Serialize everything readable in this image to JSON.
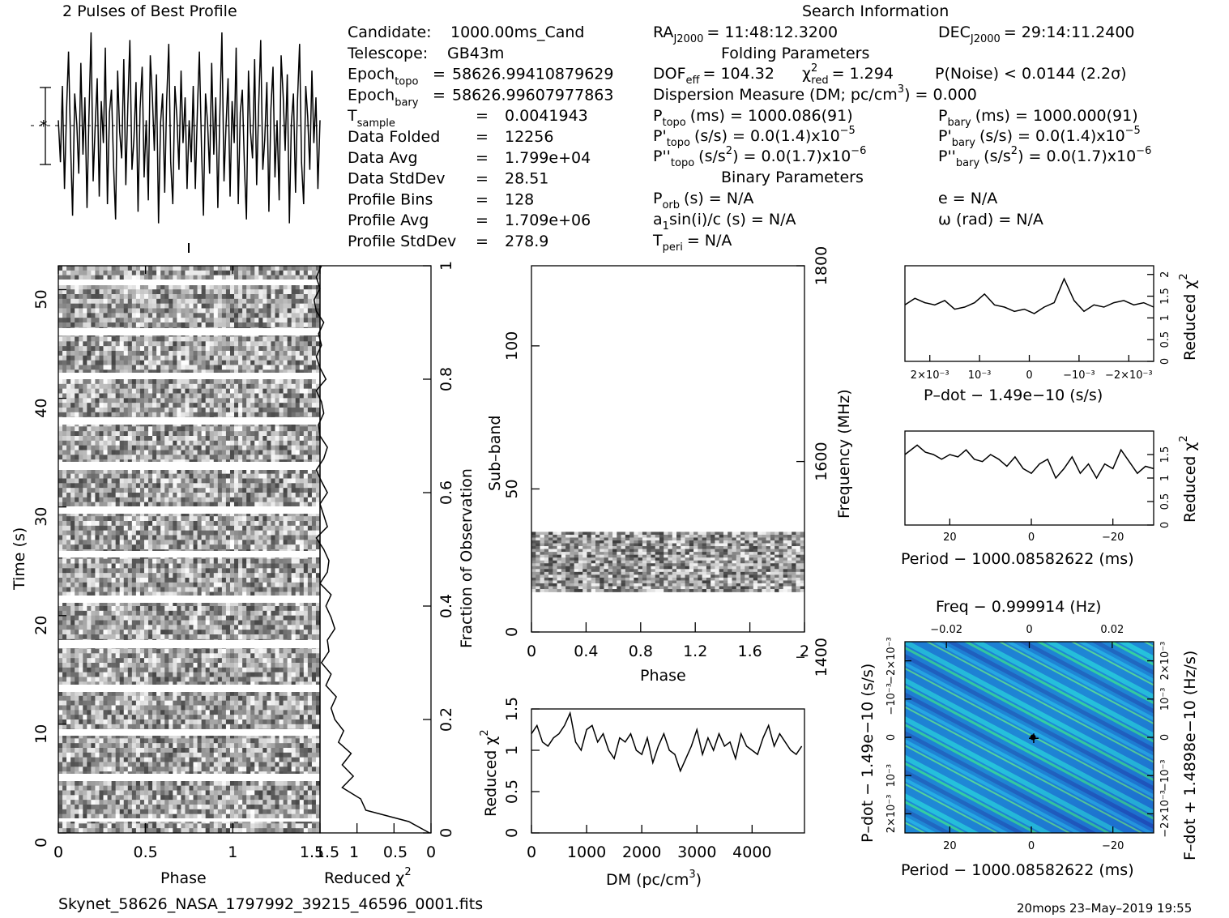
{
  "profile_title": "2 Pulses of Best Profile",
  "search_title": "Search Information",
  "footer": {
    "filename": "Skynet_58626_NASA_1797992_39215_46596_0001.fits",
    "stamp": "20mops 23–May–2019 19:55"
  },
  "info_left": [
    {
      "label": "Candidate:",
      "sub": "",
      "eq": "",
      "value": "1000.00ms_Cand"
    },
    {
      "label": "Telescope:",
      "sub": "",
      "eq": "",
      "value": "GB43m"
    },
    {
      "label": "Epoch",
      "sub": "topo",
      "eq": "=",
      "value": "58626.99410879629"
    },
    {
      "label": "Epoch",
      "sub": "bary",
      "eq": "=",
      "value": "58626.99607977863"
    },
    {
      "label": "T",
      "sub": "sample",
      "eq": "=",
      "value": "0.0041943"
    },
    {
      "label": "Data Folded",
      "sub": "",
      "eq": "=",
      "value": "12256"
    },
    {
      "label": "Data Avg",
      "sub": "",
      "eq": "=",
      "value": "1.799e+04"
    },
    {
      "label": "Data StdDev",
      "sub": "",
      "eq": "=",
      "value": "28.51"
    },
    {
      "label": "Profile Bins",
      "sub": "",
      "eq": "=",
      "value": "128"
    },
    {
      "label": "Profile Avg",
      "sub": "",
      "eq": "=",
      "value": "1.709e+06"
    },
    {
      "label": "Profile StdDev",
      "sub": "",
      "eq": "=",
      "value": "278.9"
    }
  ],
  "search_info": {
    "ra_label": "RA",
    "ra_sub": "J2000",
    "ra_value": "= 11:48:12.3200",
    "dec_label": "DEC",
    "dec_sub": "J2000",
    "dec_value": "= 29:14:11.2400",
    "folding_header": "Folding Parameters",
    "dof_label": "DOF",
    "dof_sub": "eff",
    "dof_value": "= 104.32",
    "chi_label": "χ",
    "chi_sup": "2",
    "chi_sub": "red",
    "chi_value": "= 1.294",
    "pnoise": "P(Noise) < 0.0144   (2.2σ)",
    "dm_text": "Dispersion Measure (DM; pc/cm",
    "dm_sup": "3",
    "dm_value": ") = 0.000",
    "p_topo_label": "P",
    "p_topo_sub": "topo",
    "p_topo_value": "(ms) =  1000.086(91)",
    "p_bary_label": "P",
    "p_bary_sub": "bary",
    "p_bary_value": "(ms) =  1000.000(91)",
    "pd_topo_label": "P'",
    "pd_topo_sub": "topo",
    "pd_topo_value": "(s/s) = 0.0(1.4)x10",
    "pd_topo_exp": "−5",
    "pd_bary_label": "P'",
    "pd_bary_sub": "bary",
    "pd_bary_value": "(s/s) = 0.0(1.4)x10",
    "pd_bary_exp": "−5",
    "pdd_topo_label": "P''",
    "pdd_topo_sub": "topo",
    "pdd_topo_value": "(s/s",
    "pdd_topo_rest": ") = 0.0(1.7)x10",
    "pdd_topo_exp": "−6",
    "pdd_bary_label": "P''",
    "pdd_bary_sub": "bary",
    "pdd_bary_value": "(s/s",
    "pdd_bary_rest": ") = 0.0(1.7)x10",
    "pdd_bary_exp": "−6",
    "sq": "2",
    "binary_header": "Binary Parameters",
    "porb_label": "P",
    "porb_sub": "orb",
    "porb_value": "(s) = N/A",
    "e_value": "e = N/A",
    "a1_label": "a",
    "a1_sub": "1",
    "a1_value": "sin(i)/c (s) = N/A",
    "omega_value": "ω (rad) = N/A",
    "tperi_label": "T",
    "tperi_sub": "peri",
    "tperi_value": "= N/A"
  },
  "labels": {
    "time_axis": "Time (s)",
    "phase": "Phase",
    "reduced": "Reduced",
    "chi": "χ",
    "chi_sup": "2",
    "fraction": "Fraction of Observation",
    "subband": "Sub–band",
    "frequency": "Frequency (MHz)",
    "dm_axis": "DM (pc/cm",
    "dm_axis_sup": "3",
    "dm_axis_end": ")",
    "pdot_x": "P–dot − 1.49e−10 (s/s)",
    "period_x": "Period − 1000.08582622 (ms)",
    "freq_top": "Freq − 0.999914 (Hz)",
    "pdot_left": "P–dot − 1.49e−10 (s/s)",
    "fdot_right": "F–dot + 1.4898e−10 (Hz/s)"
  },
  "chart_data": [
    {
      "type": "line",
      "name": "profile",
      "x": [
        0,
        0.016,
        0.031,
        0.047,
        0.063,
        0.078,
        0.094,
        0.109,
        0.125,
        0.141,
        0.156,
        0.172,
        0.188,
        0.203,
        0.219,
        0.234,
        0.25,
        0.266,
        0.281,
        0.297,
        0.313,
        0.328,
        0.344,
        0.359,
        0.375,
        0.391,
        0.406,
        0.422,
        0.438,
        0.453,
        0.469,
        0.484,
        0.5,
        0.516,
        0.531,
        0.547,
        0.563,
        0.578,
        0.594,
        0.609,
        0.625,
        0.641,
        0.656,
        0.672,
        0.688,
        0.703,
        0.719,
        0.734,
        0.75,
        0.766,
        0.781,
        0.797,
        0.813,
        0.828,
        0.844,
        0.859,
        0.875,
        0.891,
        0.906,
        0.922,
        0.938,
        0.953,
        0.969,
        0.984,
        1.0,
        1.016,
        1.031,
        1.047,
        1.063,
        1.078,
        1.094,
        1.109,
        1.125,
        1.141,
        1.156,
        1.172,
        1.188,
        1.203,
        1.219,
        1.234,
        1.25,
        1.266,
        1.281,
        1.297,
        1.313,
        1.328,
        1.344,
        1.359,
        1.375,
        1.391,
        1.406,
        1.422,
        1.438,
        1.453,
        1.469,
        1.484,
        1.5,
        1.516,
        1.531,
        1.547,
        1.563,
        1.578,
        1.594,
        1.609,
        1.625,
        1.641,
        1.656,
        1.672,
        1.688,
        1.703,
        1.719,
        1.734,
        1.75,
        1.766,
        1.781,
        1.797,
        1.813,
        1.828,
        1.844,
        1.859,
        1.875,
        1.891,
        1.906,
        1.922,
        1.938,
        1.953,
        1.969,
        1.984,
        2.0
      ],
      "y": [
        0.3,
        -0.8,
        1.2,
        -1.5,
        0.6,
        2.1,
        -0.4,
        -2.2,
        1.0,
        0.2,
        -1.1,
        1.8,
        -0.6,
        0.9,
        -2.0,
        0.4,
        2.6,
        -1.3,
        0.1,
        1.4,
        -1.7,
        0.8,
        -0.3,
        2.2,
        -1.9,
        0.5,
        1.1,
        -0.9,
        -2.3,
        1.6,
        0.0,
        -0.7,
        1.9,
        -1.4,
        0.7,
        2.4,
        -1.0,
        -0.2,
        1.3,
        -2.1,
        0.6,
        1.7,
        -1.2,
        0.3,
        -1.8,
        2.0,
        0.9,
        -0.5,
        1.5,
        -2.4,
        0.2,
        1.0,
        -1.6,
        0.8,
        2.3,
        -0.8,
        -1.9,
        1.2,
        0.4,
        -1.0,
        1.6,
        -0.3,
        0.9,
        -1.5,
        0.3,
        -0.8,
        1.2,
        -1.5,
        0.6,
        2.1,
        -0.4,
        -2.2,
        1.0,
        0.2,
        -1.1,
        1.8,
        -0.6,
        0.9,
        -2.0,
        0.4,
        2.6,
        -1.3,
        0.1,
        1.4,
        -1.7,
        0.8,
        -0.3,
        2.2,
        -1.9,
        0.5,
        1.1,
        -0.9,
        -2.3,
        1.6,
        0.0,
        -0.7,
        1.9,
        -1.4,
        0.7,
        2.4,
        -1.0,
        -0.2,
        1.3,
        -2.1,
        0.6,
        1.7,
        -1.2,
        0.3,
        -1.8,
        2.0,
        0.9,
        -0.5,
        1.5,
        -2.4,
        0.2,
        1.0,
        -1.6,
        0.8,
        2.3,
        -0.8,
        -1.9,
        1.2,
        0.4,
        -1.0,
        1.6,
        -0.3,
        0.9,
        -1.5,
        0.3
      ]
    },
    {
      "type": "line",
      "name": "time_chi2",
      "xlabel": "Reduced χ²",
      "ylabel": "Fraction of Observation",
      "x": [
        0.02,
        0.3,
        0.88,
        0.95,
        1.2,
        1.05,
        1.2,
        1.08,
        1.25,
        1.18,
        1.3,
        1.35,
        1.28,
        1.42,
        1.35,
        1.48,
        1.38,
        1.4,
        1.3,
        1.35,
        1.42,
        1.35,
        1.5,
        1.4,
        1.38,
        1.45,
        1.55,
        1.4,
        1.45,
        1.5,
        1.4,
        1.48,
        1.55,
        1.45,
        1.4,
        1.5,
        1.52,
        1.45,
        1.48,
        1.55,
        1.42,
        1.5,
        1.55,
        1.48,
        1.52,
        1.45,
        1.55,
        1.58,
        1.5,
        1.55,
        1.48
      ],
      "y": [
        0,
        0.02,
        0.04,
        0.06,
        0.08,
        0.1,
        0.12,
        0.14,
        0.16,
        0.18,
        0.2,
        0.22,
        0.24,
        0.26,
        0.28,
        0.3,
        0.32,
        0.34,
        0.36,
        0.38,
        0.4,
        0.42,
        0.44,
        0.46,
        0.48,
        0.5,
        0.52,
        0.54,
        0.56,
        0.58,
        0.6,
        0.62,
        0.64,
        0.66,
        0.68,
        0.7,
        0.72,
        0.74,
        0.76,
        0.78,
        0.8,
        0.82,
        0.84,
        0.86,
        0.88,
        0.9,
        0.92,
        0.94,
        0.96,
        0.98,
        1.0
      ],
      "xlim": [
        1.5,
        0
      ],
      "ylim": [
        0,
        1
      ]
    },
    {
      "type": "line",
      "name": "dm_chi2",
      "xlabel": "DM (pc/cm³)",
      "ylabel": "Reduced χ²",
      "x": [
        0,
        100,
        200,
        300,
        400,
        500,
        600,
        700,
        800,
        900,
        1000,
        1100,
        1200,
        1300,
        1400,
        1500,
        1600,
        1700,
        1800,
        1900,
        2000,
        2100,
        2200,
        2300,
        2400,
        2500,
        2600,
        2700,
        2800,
        2900,
        3000,
        3100,
        3200,
        3300,
        3400,
        3500,
        3600,
        3700,
        3800,
        3900,
        4000,
        4100,
        4200,
        4300,
        4400,
        4500,
        4600,
        4700,
        4800,
        4900
      ],
      "y": [
        1.2,
        1.3,
        1.1,
        1.05,
        1.15,
        1.2,
        1.3,
        1.45,
        1.1,
        1.0,
        1.25,
        1.3,
        1.1,
        1.2,
        1.0,
        0.9,
        1.15,
        1.1,
        1.2,
        1.0,
        0.95,
        1.15,
        0.85,
        1.05,
        1.2,
        1.0,
        0.95,
        0.75,
        0.9,
        1.05,
        1.25,
        0.95,
        1.15,
        1.0,
        1.2,
        1.05,
        1.1,
        0.9,
        1.2,
        1.05,
        1.0,
        0.95,
        1.15,
        1.3,
        1.05,
        1.2,
        1.1,
        1.0,
        0.95,
        1.05
      ],
      "xlim": [
        0,
        4950
      ],
      "ylim": [
        0,
        1.5
      ]
    },
    {
      "type": "line",
      "name": "pdot_chi2",
      "xlabel": "P–dot − 1.49e−10 (s/s)",
      "ylabel": "Reduced χ²",
      "x": [
        0.0025,
        0.0023,
        0.0021,
        0.0019,
        0.0017,
        0.0015,
        0.0013,
        0.0011,
        0.0009,
        0.0007,
        0.0005,
        0.0003,
        0.0001,
        -0.0001,
        -0.0003,
        -0.0005,
        -0.0007,
        -0.0009,
        -0.0011,
        -0.0013,
        -0.0015,
        -0.0017,
        -0.0019,
        -0.0021,
        -0.0023,
        -0.0025
      ],
      "y": [
        1.3,
        1.45,
        1.35,
        1.3,
        1.4,
        1.2,
        1.25,
        1.35,
        1.55,
        1.3,
        1.25,
        1.15,
        1.2,
        1.1,
        1.25,
        1.35,
        1.9,
        1.4,
        1.15,
        1.3,
        1.25,
        1.35,
        1.4,
        1.3,
        1.35,
        1.25
      ],
      "xlim": [
        0.0025,
        -0.0025
      ],
      "ylim": [
        0,
        2.2
      ]
    },
    {
      "type": "line",
      "name": "period_chi2",
      "xlabel": "Period − 1000.08582622 (ms)",
      "ylabel": "Reduced χ²",
      "x": [
        31,
        28,
        26,
        24,
        22,
        20,
        18,
        16,
        14,
        12,
        10,
        8,
        6,
        4,
        2,
        0,
        -2,
        -4,
        -6,
        -8,
        -10,
        -12,
        -14,
        -16,
        -18,
        -20,
        -22,
        -24,
        -26,
        -28,
        -30
      ],
      "y": [
        1.5,
        1.7,
        1.55,
        1.5,
        1.4,
        1.5,
        1.45,
        1.6,
        1.4,
        1.35,
        1.5,
        1.4,
        1.25,
        1.45,
        1.2,
        1.1,
        1.3,
        1.4,
        1.0,
        1.2,
        1.45,
        1.1,
        1.3,
        1.0,
        1.3,
        1.2,
        1.6,
        1.35,
        1.1,
        1.25,
        1.2
      ],
      "xlim": [
        31,
        -30
      ],
      "ylim": [
        0,
        2
      ]
    }
  ]
}
